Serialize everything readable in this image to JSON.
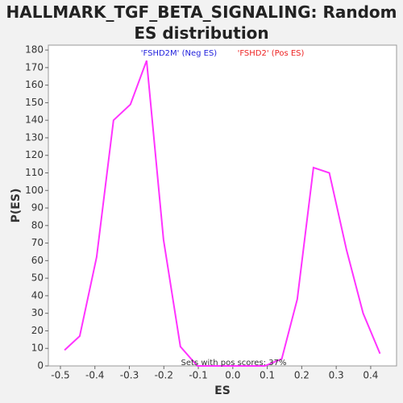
{
  "chart_data": {
    "type": "line",
    "title": "HALLMARK_TGF_BETA_SIGNALING: Random ES distribution",
    "x_label": "ES",
    "y_label": "P(ES)",
    "annotations": [
      {
        "text": "'FSHD2M' (Neg ES)",
        "color": "#2222dd"
      },
      {
        "text": "'FSHD2' (Pos ES)",
        "color": "#ee2222"
      },
      {
        "text": "Sets with pos scores: 37%",
        "color": "#333333"
      }
    ],
    "x": [
      -0.488,
      -0.444,
      -0.395,
      -0.346,
      -0.297,
      -0.25,
      -0.201,
      -0.152,
      -0.103,
      -0.054,
      -0.005,
      0.044,
      0.093,
      0.142,
      0.187,
      0.234,
      0.28,
      0.33,
      0.378,
      0.427
    ],
    "series": [
      {
        "name": "P(ES)",
        "color": "#ff33ff",
        "values": [
          9,
          17,
          62,
          140,
          149,
          174,
          72,
          11,
          0,
          0,
          0,
          0,
          0,
          4,
          38,
          113,
          110,
          66,
          30,
          7
        ]
      }
    ],
    "xlim": [
      -0.535,
      0.475
    ],
    "ylim": [
      0,
      182.8
    ],
    "xticks": [
      -0.5,
      -0.4,
      -0.3,
      -0.2,
      -0.1,
      {
        "value": 0,
        "label": "0.0"
      },
      0.1,
      0.2,
      0.3,
      0.4
    ],
    "yticks": [
      0,
      10,
      20,
      30,
      40,
      50,
      60,
      70,
      80,
      90,
      100,
      110,
      120,
      130,
      140,
      150,
      160,
      170,
      180
    ],
    "grid": false
  }
}
